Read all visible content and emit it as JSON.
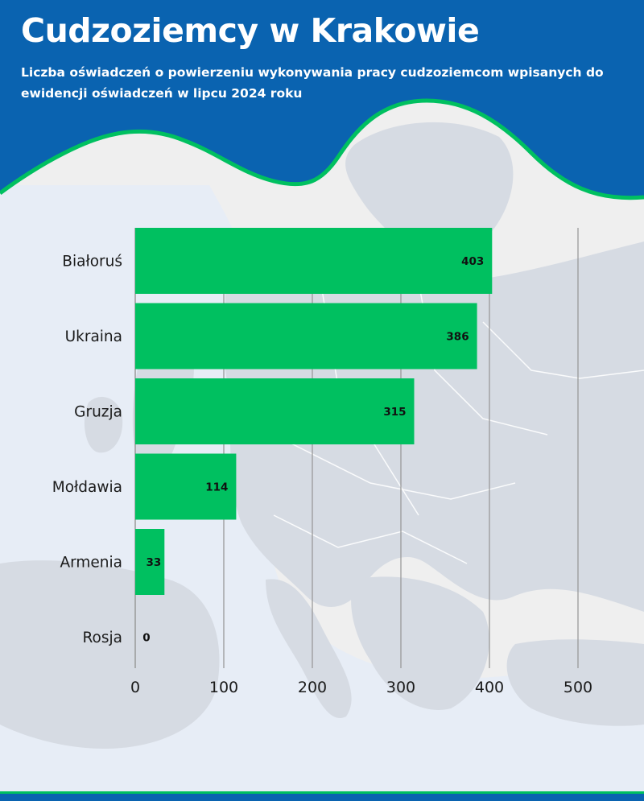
{
  "header": {
    "title": "Cudzoziemcy w Krakowie",
    "subtitle": "Liczba oświadczeń o powierzeniu wykonywania pracy cudzoziemcom wpisanych do ewidencji oświadczeń w lipcu 2024 roku"
  },
  "colors": {
    "header_blue": "#0a63b0",
    "accent_green": "#00c060",
    "bar_green": "#00c060",
    "map_land": "#d6dbe3",
    "map_sea": "#e7edf6",
    "background": "#efefef"
  },
  "chart_data": {
    "type": "bar",
    "orientation": "horizontal",
    "title": "Cudzoziemcy w Krakowie",
    "subtitle": "Liczba oświadczeń o powierzeniu wykonywania pracy cudzoziemcom wpisanych do ewidencji oświadczeń w lipcu 2024 roku",
    "categories": [
      "Białoruś",
      "Ukraina",
      "Gruzja",
      "Mołdawia",
      "Armenia",
      "Rosja"
    ],
    "values": [
      403,
      386,
      315,
      114,
      33,
      0
    ],
    "data_labels": [
      "403",
      "386",
      "315",
      "114",
      "33",
      "0"
    ],
    "xlim": [
      0,
      500
    ],
    "xticks": [
      0,
      100,
      200,
      300,
      400,
      500
    ],
    "xtick_labels": [
      "0",
      "100",
      "200",
      "300",
      "400",
      "500"
    ],
    "grid": true,
    "legend": "none"
  }
}
